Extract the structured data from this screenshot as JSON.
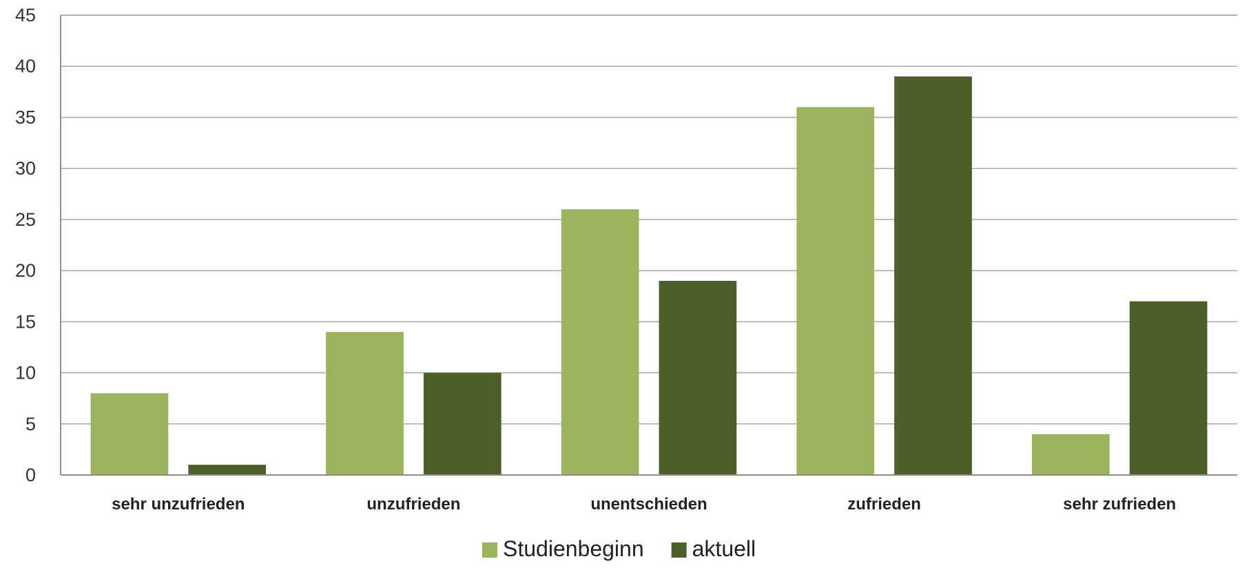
{
  "chart_data": {
    "type": "bar",
    "title": "",
    "xlabel": "",
    "ylabel": "",
    "categories": [
      "sehr unzufrieden",
      "unzufrieden",
      "unentschieden",
      "zufrieden",
      "sehr zufrieden"
    ],
    "series": [
      {
        "name": "Studienbeginn",
        "color": "#9bb35c",
        "values": [
          8,
          14,
          26,
          36,
          4
        ]
      },
      {
        "name": "aktuell",
        "color": "#4e5f2c",
        "values": [
          1,
          10,
          19,
          39,
          17
        ]
      }
    ],
    "ylim": [
      0,
      45
    ],
    "yticks": [
      0,
      5,
      10,
      15,
      20,
      25,
      30,
      35,
      40,
      45
    ],
    "grid": true,
    "legend_position": "bottom"
  }
}
